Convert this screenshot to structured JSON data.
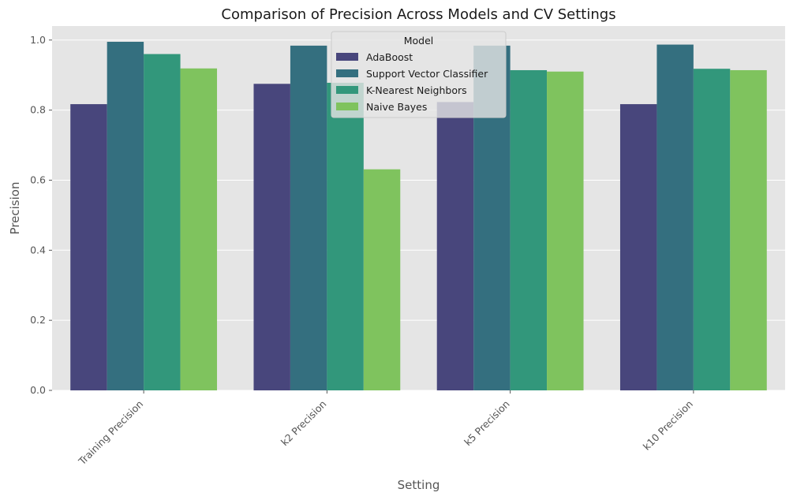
{
  "chart_data": {
    "type": "bar",
    "title": "Comparison of Precision Across Models and CV Settings",
    "xlabel": "Setting",
    "ylabel": "Precision",
    "ylim": [
      0,
      1.04
    ],
    "yticks": [
      "0.0",
      "0.2",
      "0.4",
      "0.6",
      "0.8",
      "1.0"
    ],
    "ytick_values": [
      0,
      0.2,
      0.4,
      0.6,
      0.8,
      1.0
    ],
    "categories": [
      "Training Precision",
      "k2 Precision",
      "k5 Precision",
      "k10 Precision"
    ],
    "grid": true,
    "legend": {
      "title": "Model",
      "placement": "top-center"
    },
    "series": [
      {
        "name": "AdaBoost",
        "color": "#48467c",
        "values": [
          0.817,
          0.875,
          0.823,
          0.817
        ]
      },
      {
        "name": "Support Vector Classifier",
        "color": "#346f7f",
        "values": [
          0.995,
          0.984,
          0.984,
          0.987
        ]
      },
      {
        "name": "K-Nearest Neighbors",
        "color": "#32977b",
        "values": [
          0.96,
          0.878,
          0.914,
          0.918
        ]
      },
      {
        "name": "Naive Bayes",
        "color": "#7fc35e",
        "values": [
          0.919,
          0.631,
          0.91,
          0.914
        ]
      }
    ],
    "colors": {
      "plot_background": "#e5e5e5",
      "gridline": "#ffffff"
    }
  }
}
